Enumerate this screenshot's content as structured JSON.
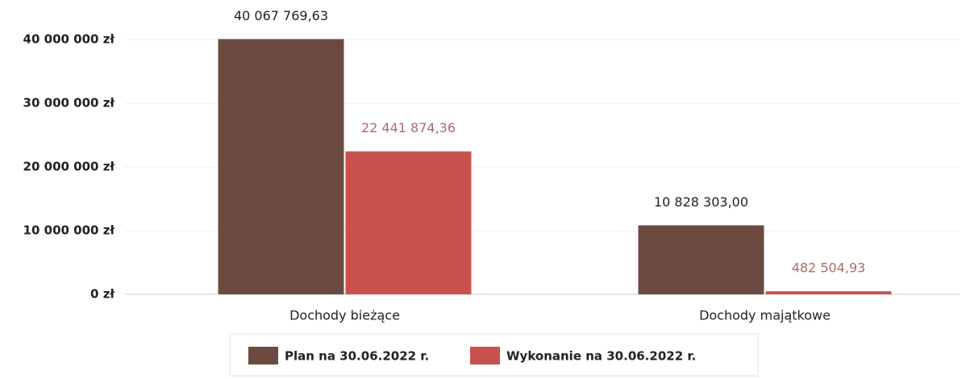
{
  "chart_data": {
    "type": "bar",
    "categories": [
      "Dochody bieżące",
      "Dochody majątkowe"
    ],
    "series": [
      {
        "name": "Plan na 30.06.2022 r.",
        "color": "#6b4a40",
        "label_color": "#222222",
        "values": [
          40067769.63,
          10828303.0
        ],
        "value_labels": [
          "40 067 769,63",
          "10 828 303,00"
        ]
      },
      {
        "name": "Wykonanie na 30.06.2022 r.",
        "color": "#c9514d",
        "label_color": "#b06a6c",
        "values": [
          22441874.36,
          482504.93
        ],
        "value_labels": [
          "22 441 874,36",
          "482 504,93"
        ]
      }
    ],
    "ylim": [
      0,
      40000000
    ],
    "yticks": [
      {
        "value": 0,
        "label": "0 zł"
      },
      {
        "value": 10000000,
        "label": "10 000 000 zł"
      },
      {
        "value": 20000000,
        "label": "20 000 000 zł"
      },
      {
        "value": 30000000,
        "label": "30 000 000 zł"
      },
      {
        "value": 40000000,
        "label": "40 000 000 zł"
      }
    ],
    "grid": true,
    "legend": "bottom"
  }
}
